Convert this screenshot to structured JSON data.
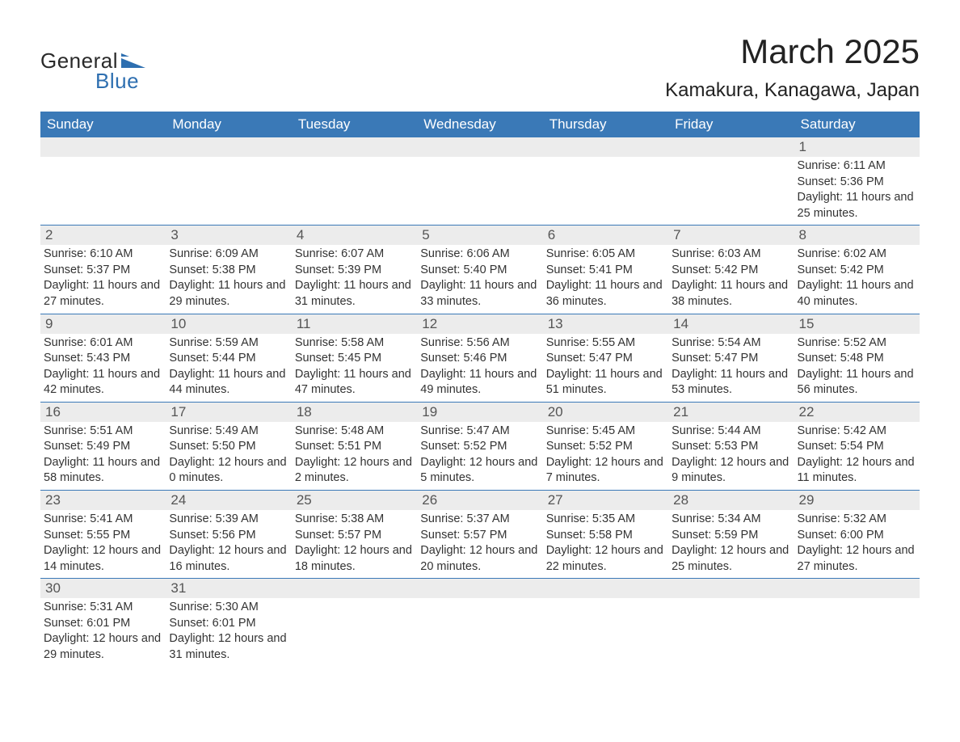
{
  "logo": {
    "word1": "General",
    "word2": "Blue",
    "shape_color": "#2e6fb0",
    "text_color_general": "#2a2a2a",
    "text_color_blue": "#2e6fb0"
  },
  "title": "March 2025",
  "location": "Kamakura, Kanagawa, Japan",
  "colors": {
    "header_bg": "#3a79b7",
    "header_text": "#ffffff",
    "row_divider": "#3a79b7",
    "daynum_bg": "#ececec",
    "daynum_text": "#555555",
    "body_text": "#333333",
    "page_bg": "#ffffff"
  },
  "typography": {
    "title_fontsize": 42,
    "location_fontsize": 24,
    "header_fontsize": 17,
    "daynum_fontsize": 17,
    "body_fontsize": 14.5,
    "font_family": "Arial"
  },
  "weekdays": [
    "Sunday",
    "Monday",
    "Tuesday",
    "Wednesday",
    "Thursday",
    "Friday",
    "Saturday"
  ],
  "rows": [
    [
      {
        "day": "",
        "lines": []
      },
      {
        "day": "",
        "lines": []
      },
      {
        "day": "",
        "lines": []
      },
      {
        "day": "",
        "lines": []
      },
      {
        "day": "",
        "lines": []
      },
      {
        "day": "",
        "lines": []
      },
      {
        "day": "1",
        "lines": [
          "Sunrise: 6:11 AM",
          "Sunset: 5:36 PM",
          "Daylight: 11 hours and 25 minutes."
        ]
      }
    ],
    [
      {
        "day": "2",
        "lines": [
          "Sunrise: 6:10 AM",
          "Sunset: 5:37 PM",
          "Daylight: 11 hours and 27 minutes."
        ]
      },
      {
        "day": "3",
        "lines": [
          "Sunrise: 6:09 AM",
          "Sunset: 5:38 PM",
          "Daylight: 11 hours and 29 minutes."
        ]
      },
      {
        "day": "4",
        "lines": [
          "Sunrise: 6:07 AM",
          "Sunset: 5:39 PM",
          "Daylight: 11 hours and 31 minutes."
        ]
      },
      {
        "day": "5",
        "lines": [
          "Sunrise: 6:06 AM",
          "Sunset: 5:40 PM",
          "Daylight: 11 hours and 33 minutes."
        ]
      },
      {
        "day": "6",
        "lines": [
          "Sunrise: 6:05 AM",
          "Sunset: 5:41 PM",
          "Daylight: 11 hours and 36 minutes."
        ]
      },
      {
        "day": "7",
        "lines": [
          "Sunrise: 6:03 AM",
          "Sunset: 5:42 PM",
          "Daylight: 11 hours and 38 minutes."
        ]
      },
      {
        "day": "8",
        "lines": [
          "Sunrise: 6:02 AM",
          "Sunset: 5:42 PM",
          "Daylight: 11 hours and 40 minutes."
        ]
      }
    ],
    [
      {
        "day": "9",
        "lines": [
          "Sunrise: 6:01 AM",
          "Sunset: 5:43 PM",
          "Daylight: 11 hours and 42 minutes."
        ]
      },
      {
        "day": "10",
        "lines": [
          "Sunrise: 5:59 AM",
          "Sunset: 5:44 PM",
          "Daylight: 11 hours and 44 minutes."
        ]
      },
      {
        "day": "11",
        "lines": [
          "Sunrise: 5:58 AM",
          "Sunset: 5:45 PM",
          "Daylight: 11 hours and 47 minutes."
        ]
      },
      {
        "day": "12",
        "lines": [
          "Sunrise: 5:56 AM",
          "Sunset: 5:46 PM",
          "Daylight: 11 hours and 49 minutes."
        ]
      },
      {
        "day": "13",
        "lines": [
          "Sunrise: 5:55 AM",
          "Sunset: 5:47 PM",
          "Daylight: 11 hours and 51 minutes."
        ]
      },
      {
        "day": "14",
        "lines": [
          "Sunrise: 5:54 AM",
          "Sunset: 5:47 PM",
          "Daylight: 11 hours and 53 minutes."
        ]
      },
      {
        "day": "15",
        "lines": [
          "Sunrise: 5:52 AM",
          "Sunset: 5:48 PM",
          "Daylight: 11 hours and 56 minutes."
        ]
      }
    ],
    [
      {
        "day": "16",
        "lines": [
          "Sunrise: 5:51 AM",
          "Sunset: 5:49 PM",
          "Daylight: 11 hours and 58 minutes."
        ]
      },
      {
        "day": "17",
        "lines": [
          "Sunrise: 5:49 AM",
          "Sunset: 5:50 PM",
          "Daylight: 12 hours and 0 minutes."
        ]
      },
      {
        "day": "18",
        "lines": [
          "Sunrise: 5:48 AM",
          "Sunset: 5:51 PM",
          "Daylight: 12 hours and 2 minutes."
        ]
      },
      {
        "day": "19",
        "lines": [
          "Sunrise: 5:47 AM",
          "Sunset: 5:52 PM",
          "Daylight: 12 hours and 5 minutes."
        ]
      },
      {
        "day": "20",
        "lines": [
          "Sunrise: 5:45 AM",
          "Sunset: 5:52 PM",
          "Daylight: 12 hours and 7 minutes."
        ]
      },
      {
        "day": "21",
        "lines": [
          "Sunrise: 5:44 AM",
          "Sunset: 5:53 PM",
          "Daylight: 12 hours and 9 minutes."
        ]
      },
      {
        "day": "22",
        "lines": [
          "Sunrise: 5:42 AM",
          "Sunset: 5:54 PM",
          "Daylight: 12 hours and 11 minutes."
        ]
      }
    ],
    [
      {
        "day": "23",
        "lines": [
          "Sunrise: 5:41 AM",
          "Sunset: 5:55 PM",
          "Daylight: 12 hours and 14 minutes."
        ]
      },
      {
        "day": "24",
        "lines": [
          "Sunrise: 5:39 AM",
          "Sunset: 5:56 PM",
          "Daylight: 12 hours and 16 minutes."
        ]
      },
      {
        "day": "25",
        "lines": [
          "Sunrise: 5:38 AM",
          "Sunset: 5:57 PM",
          "Daylight: 12 hours and 18 minutes."
        ]
      },
      {
        "day": "26",
        "lines": [
          "Sunrise: 5:37 AM",
          "Sunset: 5:57 PM",
          "Daylight: 12 hours and 20 minutes."
        ]
      },
      {
        "day": "27",
        "lines": [
          "Sunrise: 5:35 AM",
          "Sunset: 5:58 PM",
          "Daylight: 12 hours and 22 minutes."
        ]
      },
      {
        "day": "28",
        "lines": [
          "Sunrise: 5:34 AM",
          "Sunset: 5:59 PM",
          "Daylight: 12 hours and 25 minutes."
        ]
      },
      {
        "day": "29",
        "lines": [
          "Sunrise: 5:32 AM",
          "Sunset: 6:00 PM",
          "Daylight: 12 hours and 27 minutes."
        ]
      }
    ],
    [
      {
        "day": "30",
        "lines": [
          "Sunrise: 5:31 AM",
          "Sunset: 6:01 PM",
          "Daylight: 12 hours and 29 minutes."
        ]
      },
      {
        "day": "31",
        "lines": [
          "Sunrise: 5:30 AM",
          "Sunset: 6:01 PM",
          "Daylight: 12 hours and 31 minutes."
        ]
      },
      {
        "day": "",
        "lines": []
      },
      {
        "day": "",
        "lines": []
      },
      {
        "day": "",
        "lines": []
      },
      {
        "day": "",
        "lines": []
      },
      {
        "day": "",
        "lines": []
      }
    ]
  ]
}
